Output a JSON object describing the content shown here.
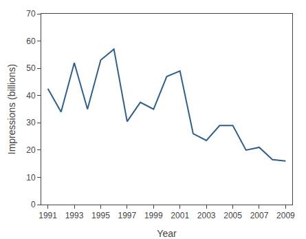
{
  "chart_data": {
    "type": "line",
    "x": [
      1991,
      1992,
      1993,
      1994,
      1995,
      1996,
      1997,
      1998,
      1999,
      2000,
      2001,
      2002,
      2003,
      2004,
      2005,
      2006,
      2007,
      2008,
      2009
    ],
    "values": [
      42.5,
      34,
      52,
      35,
      53,
      57,
      30.5,
      37.5,
      35,
      47,
      49,
      26,
      23.5,
      29,
      29,
      20,
      21,
      16.5,
      16
    ],
    "color": "#2e5f8a",
    "xlabel": "Year",
    "ylabel": "Impressions (billions)",
    "xlim": [
      1990.5,
      2009.5
    ],
    "ylim": [
      0,
      70
    ],
    "xticks": [
      1991,
      1993,
      1995,
      1997,
      1999,
      2001,
      2003,
      2005,
      2007,
      2009
    ],
    "yticks": [
      0,
      10,
      20,
      30,
      40,
      50,
      60,
      70
    ],
    "grid": false
  }
}
